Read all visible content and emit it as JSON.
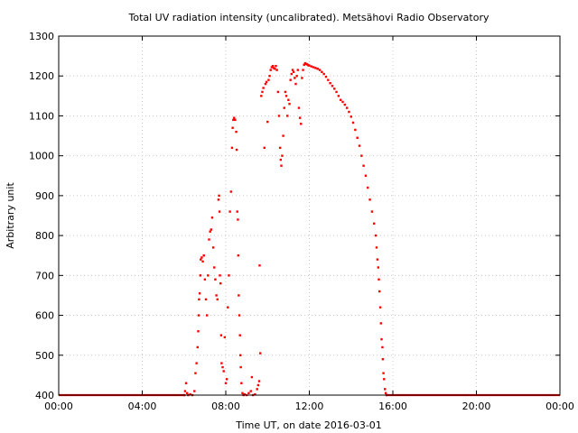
{
  "chart_data": {
    "type": "scatter",
    "title": "Total UV radiation intensity (uncalibrated). Metsähovi Radio Observatory",
    "xlabel": "Time UT, on date 2016-03-01",
    "ylabel": "Arbitrary unit",
    "xlim": [
      0,
      24
    ],
    "ylim": [
      400,
      1300
    ],
    "x_unit": "hours UT",
    "grid": true,
    "point_color": "#ff0000",
    "x_ticks": [
      {
        "value": 0,
        "label": "00:00"
      },
      {
        "value": 4,
        "label": "04:00"
      },
      {
        "value": 8,
        "label": "08:00"
      },
      {
        "value": 12,
        "label": "12:00"
      },
      {
        "value": 16,
        "label": "16:00"
      },
      {
        "value": 20,
        "label": "20:00"
      },
      {
        "value": 24,
        "label": "00:00"
      }
    ],
    "y_ticks": [
      {
        "value": 400,
        "label": "400"
      },
      {
        "value": 500,
        "label": "500"
      },
      {
        "value": 600,
        "label": "600"
      },
      {
        "value": 700,
        "label": "700"
      },
      {
        "value": 800,
        "label": "800"
      },
      {
        "value": 900,
        "label": "900"
      },
      {
        "value": 1000,
        "label": "1000"
      },
      {
        "value": 1100,
        "label": "1100"
      },
      {
        "value": 1200,
        "label": "1200"
      },
      {
        "value": 1300,
        "label": "1300"
      }
    ],
    "points": [
      [
        6.02,
        400
      ],
      [
        6.05,
        410
      ],
      [
        6.1,
        430
      ],
      [
        6.15,
        405
      ],
      [
        6.2,
        400
      ],
      [
        6.3,
        402
      ],
      [
        6.4,
        400
      ],
      [
        6.5,
        410
      ],
      [
        6.55,
        455
      ],
      [
        6.6,
        480
      ],
      [
        6.65,
        520
      ],
      [
        6.68,
        560
      ],
      [
        6.7,
        600
      ],
      [
        6.72,
        640
      ],
      [
        6.75,
        655
      ],
      [
        6.78,
        700
      ],
      [
        6.8,
        740
      ],
      [
        6.85,
        745
      ],
      [
        6.9,
        735
      ],
      [
        6.95,
        750
      ],
      [
        7.0,
        690
      ],
      [
        7.05,
        640
      ],
      [
        7.1,
        600
      ],
      [
        7.15,
        700
      ],
      [
        7.2,
        790
      ],
      [
        7.25,
        810
      ],
      [
        7.3,
        815
      ],
      [
        7.35,
        845
      ],
      [
        7.4,
        770
      ],
      [
        7.45,
        720
      ],
      [
        7.5,
        690
      ],
      [
        7.55,
        650
      ],
      [
        7.6,
        640
      ],
      [
        7.65,
        890
      ],
      [
        7.68,
        900
      ],
      [
        7.7,
        860
      ],
      [
        7.72,
        700
      ],
      [
        7.75,
        680
      ],
      [
        7.78,
        550
      ],
      [
        7.8,
        480
      ],
      [
        7.85,
        470
      ],
      [
        7.9,
        460
      ],
      [
        7.95,
        545
      ],
      [
        8.0,
        430
      ],
      [
        8.05,
        440
      ],
      [
        8.1,
        620
      ],
      [
        8.15,
        700
      ],
      [
        8.2,
        860
      ],
      [
        8.25,
        910
      ],
      [
        8.3,
        1020
      ],
      [
        8.33,
        1070
      ],
      [
        8.36,
        1090
      ],
      [
        8.4,
        1095
      ],
      [
        8.45,
        1090
      ],
      [
        8.5,
        1060
      ],
      [
        8.52,
        1015
      ],
      [
        8.55,
        860
      ],
      [
        8.58,
        840
      ],
      [
        8.6,
        750
      ],
      [
        8.62,
        650
      ],
      [
        8.65,
        600
      ],
      [
        8.68,
        550
      ],
      [
        8.7,
        500
      ],
      [
        8.72,
        470
      ],
      [
        8.75,
        430
      ],
      [
        8.8,
        405
      ],
      [
        8.85,
        400
      ],
      [
        8.9,
        402
      ],
      [
        9.0,
        400
      ],
      [
        9.1,
        405
      ],
      [
        9.2,
        410
      ],
      [
        9.25,
        445
      ],
      [
        9.3,
        400
      ],
      [
        9.4,
        402
      ],
      [
        9.5,
        415
      ],
      [
        9.55,
        425
      ],
      [
        9.6,
        435
      ],
      [
        9.62,
        725
      ],
      [
        9.65,
        505
      ],
      [
        9.7,
        1150
      ],
      [
        9.75,
        1160
      ],
      [
        9.8,
        1170
      ],
      [
        9.85,
        1020
      ],
      [
        9.9,
        1180
      ],
      [
        9.95,
        1185
      ],
      [
        10.0,
        1085
      ],
      [
        10.05,
        1190
      ],
      [
        10.1,
        1200
      ],
      [
        10.15,
        1215
      ],
      [
        10.2,
        1222
      ],
      [
        10.25,
        1225
      ],
      [
        10.3,
        1220
      ],
      [
        10.35,
        1218
      ],
      [
        10.4,
        1225
      ],
      [
        10.45,
        1215
      ],
      [
        10.5,
        1160
      ],
      [
        10.55,
        1100
      ],
      [
        10.6,
        1020
      ],
      [
        10.63,
        990
      ],
      [
        10.66,
        975
      ],
      [
        10.7,
        1000
      ],
      [
        10.75,
        1050
      ],
      [
        10.8,
        1120
      ],
      [
        10.85,
        1160
      ],
      [
        10.9,
        1150
      ],
      [
        10.95,
        1100
      ],
      [
        11.0,
        1140
      ],
      [
        11.05,
        1130
      ],
      [
        11.1,
        1190
      ],
      [
        11.15,
        1205
      ],
      [
        11.2,
        1215
      ],
      [
        11.25,
        1210
      ],
      [
        11.3,
        1195
      ],
      [
        11.35,
        1180
      ],
      [
        11.4,
        1200
      ],
      [
        11.45,
        1215
      ],
      [
        11.5,
        1120
      ],
      [
        11.55,
        1095
      ],
      [
        11.6,
        1080
      ],
      [
        11.65,
        1195
      ],
      [
        11.7,
        1215
      ],
      [
        11.75,
        1228
      ],
      [
        11.8,
        1232
      ],
      [
        11.85,
        1230
      ],
      [
        11.9,
        1229
      ],
      [
        11.95,
        1227
      ],
      [
        12.0,
        1226
      ],
      [
        12.1,
        1224
      ],
      [
        12.2,
        1222
      ],
      [
        12.3,
        1220
      ],
      [
        12.4,
        1218
      ],
      [
        12.5,
        1215
      ],
      [
        12.6,
        1210
      ],
      [
        12.7,
        1205
      ],
      [
        12.8,
        1198
      ],
      [
        12.9,
        1190
      ],
      [
        13.0,
        1182
      ],
      [
        13.1,
        1175
      ],
      [
        13.2,
        1168
      ],
      [
        13.3,
        1160
      ],
      [
        13.4,
        1150
      ],
      [
        13.5,
        1140
      ],
      [
        13.6,
        1135
      ],
      [
        13.7,
        1128
      ],
      [
        13.8,
        1120
      ],
      [
        13.9,
        1110
      ],
      [
        14.0,
        1098
      ],
      [
        14.1,
        1083
      ],
      [
        14.2,
        1065
      ],
      [
        14.3,
        1045
      ],
      [
        14.4,
        1025
      ],
      [
        14.5,
        1000
      ],
      [
        14.6,
        975
      ],
      [
        14.7,
        950
      ],
      [
        14.8,
        920
      ],
      [
        14.9,
        890
      ],
      [
        15.0,
        860
      ],
      [
        15.1,
        830
      ],
      [
        15.18,
        800
      ],
      [
        15.22,
        770
      ],
      [
        15.26,
        740
      ],
      [
        15.3,
        720
      ],
      [
        15.33,
        690
      ],
      [
        15.36,
        660
      ],
      [
        15.4,
        620
      ],
      [
        15.43,
        580
      ],
      [
        15.46,
        540
      ],
      [
        15.5,
        520
      ],
      [
        15.52,
        490
      ],
      [
        15.55,
        455
      ],
      [
        15.58,
        440
      ],
      [
        15.62,
        415
      ],
      [
        15.66,
        405
      ],
      [
        15.7,
        400
      ]
    ]
  }
}
